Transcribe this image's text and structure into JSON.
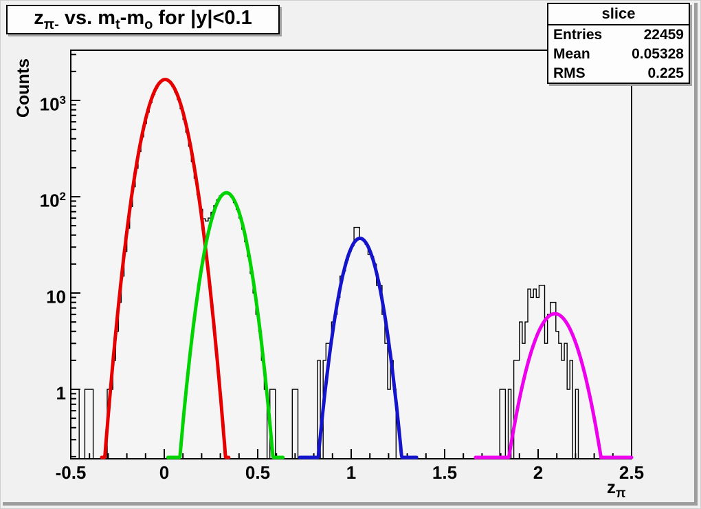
{
  "title": {
    "part_z": "z",
    "part_z_sub": "π-",
    "part_mid1": " vs. m",
    "part_m1_sub": "t",
    "part_mid2": "-m",
    "part_m2_sub": "o",
    "part_end": " for |y|<0.1"
  },
  "stats": {
    "title": "slice",
    "rows": [
      {
        "label": "Entries",
        "value": "22459"
      },
      {
        "label": "Mean",
        "value": "0.05328"
      },
      {
        "label": "RMS",
        "value": "0.225"
      }
    ]
  },
  "axes": {
    "y_title": "Counts",
    "x_title": {
      "main": "z",
      "sub": "π"
    },
    "x_tick_labels": [
      "-0.5",
      "0",
      "0.5",
      "1",
      "1.5",
      "2",
      "2.5"
    ],
    "y_ticks": [
      {
        "base": "1",
        "exp": ""
      },
      {
        "base": "10",
        "exp": ""
      },
      {
        "base": "10",
        "exp": "2"
      },
      {
        "base": "10",
        "exp": "3"
      }
    ]
  },
  "chart_data": {
    "type": "bar",
    "subtype": "histogram-with-gaussian-fits",
    "title": "z_{pi-} vs. m_t-m_o for |y|<0.1",
    "xlabel": "z_pi",
    "ylabel": "Counts",
    "x_range": [
      -0.5,
      2.5
    ],
    "y_range": [
      0.19,
      3400
    ],
    "y_scale": "log",
    "grid": false,
    "x_ticks_major": [
      -0.5,
      0,
      0.5,
      1,
      1.5,
      2,
      2.5
    ],
    "x_minor_step": 0.1,
    "histogram": {
      "name": "slice",
      "line_color": "#000000",
      "bin_start": -0.5,
      "bin_width": 0.015,
      "counts": [
        1,
        1,
        1,
        0,
        0,
        1,
        1,
        1,
        0,
        0,
        0,
        0,
        0,
        1,
        1,
        2,
        4,
        8,
        15,
        27,
        47,
        79,
        127,
        198,
        294,
        419,
        575,
        756,
        954,
        1155,
        1343,
        1498,
        1605,
        1650,
        1627,
        1540,
        1400,
        1220,
        1021,
        820,
        633,
        469,
        334,
        231,
        156,
        105,
        74,
        59,
        56,
        60,
        69,
        81,
        93,
        102,
        108,
        110,
        107,
        99,
        87,
        74,
        60,
        46,
        34,
        24,
        16,
        10,
        6,
        4,
        2,
        1,
        0,
        1,
        1,
        0,
        0,
        0,
        0,
        0,
        0,
        1,
        1,
        0,
        0,
        0,
        0,
        0,
        0,
        0,
        2,
        0,
        2,
        3,
        3,
        5,
        6,
        9,
        15,
        17,
        22,
        27,
        31,
        48,
        48,
        37,
        35,
        32,
        25,
        24,
        20,
        12,
        12,
        6,
        3,
        1,
        2,
        1,
        0,
        0,
        0,
        0,
        0,
        0,
        0,
        0,
        0,
        0,
        0,
        0,
        0,
        0,
        0,
        0,
        0,
        0,
        0,
        0,
        0,
        0,
        0,
        0,
        0,
        0,
        0,
        0,
        0,
        0,
        0,
        0,
        0,
        0,
        0,
        0,
        0,
        1,
        1,
        0,
        1,
        0,
        2,
        2,
        5,
        3,
        5,
        11,
        9,
        11,
        9,
        12,
        12,
        3,
        6,
        8,
        8,
        4,
        3,
        2,
        3,
        1,
        2,
        0,
        1,
        0,
        0,
        0,
        0,
        0,
        0,
        0,
        0,
        0,
        0,
        0,
        0,
        0,
        0
      ]
    },
    "fits": [
      {
        "name": "gaussian-red",
        "color": "#e60000",
        "amplitude": 1650,
        "mean": 0.005,
        "sigma": 0.076,
        "draw_range": [
          -0.335,
          0.345
        ]
      },
      {
        "name": "gaussian-green",
        "color": "#00d400",
        "amplitude": 110,
        "mean": 0.3325,
        "sigma": 0.07,
        "draw_range": [
          0.02,
          0.635
        ]
      },
      {
        "name": "gaussian-blue",
        "color": "#1414cc",
        "amplitude": 37,
        "mean": 1.047,
        "sigma": 0.069,
        "draw_range": [
          0.725,
          1.35
        ]
      },
      {
        "name": "gaussian-magenta",
        "color": "#ee00ee",
        "amplitude": 6.1,
        "mean": 2.09,
        "sigma": 0.094,
        "draw_range": [
          1.665,
          2.5
        ]
      }
    ]
  }
}
